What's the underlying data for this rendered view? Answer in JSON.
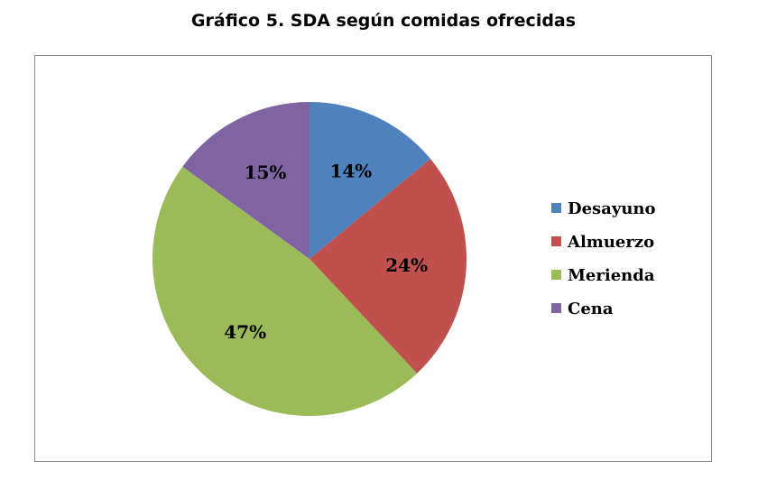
{
  "title": "Gráfico 5. SDA según comidas ofrecidas",
  "chart_data": {
    "type": "pie",
    "title": "Gráfico 5. SDA según comidas ofrecidas",
    "categories": [
      "Desayuno",
      "Almuerzo",
      "Merienda",
      "Cena"
    ],
    "values": [
      14,
      24,
      47,
      15
    ],
    "labels": [
      "14%",
      "24%",
      "47%",
      "15%"
    ],
    "colors": [
      "#4f81bd",
      "#c0504d",
      "#9bbb59",
      "#8064a2"
    ],
    "legend": "right",
    "start": "12 o'clock",
    "direction": "clockwise"
  }
}
